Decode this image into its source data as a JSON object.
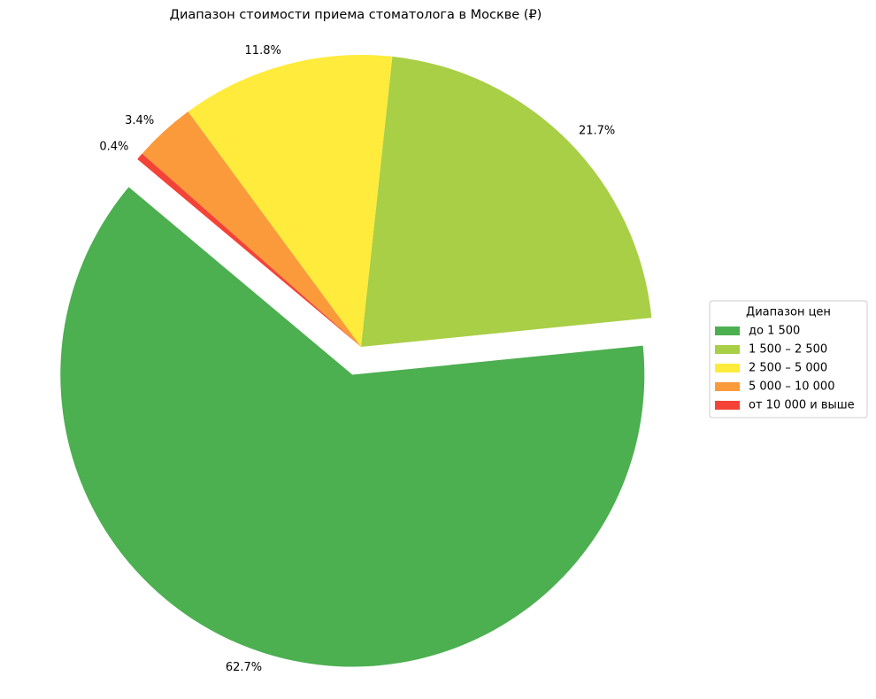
{
  "chart_data": {
    "type": "pie",
    "title": "Диапазон стоимости приема стоматолога в Москве (₽)",
    "categories": [
      "до 1 500",
      "1 500 – 2 500",
      "2 500 – 5 000",
      "5 000 – 10 000",
      "от 10 000 и выше"
    ],
    "values": [
      62.7,
      21.7,
      11.8,
      3.4,
      0.4
    ],
    "value_labels": [
      "62.7%",
      "21.7%",
      "11.8%",
      "3.4%",
      "0.4%"
    ],
    "colors": [
      "#4caf50",
      "#a8cf45",
      "#ffeb3b",
      "#fb9a3a",
      "#f44336"
    ],
    "explode": [
      0.1,
      0,
      0,
      0,
      0
    ],
    "startangle": 140,
    "legend_title": "Диапазон цен",
    "legend": "right"
  }
}
